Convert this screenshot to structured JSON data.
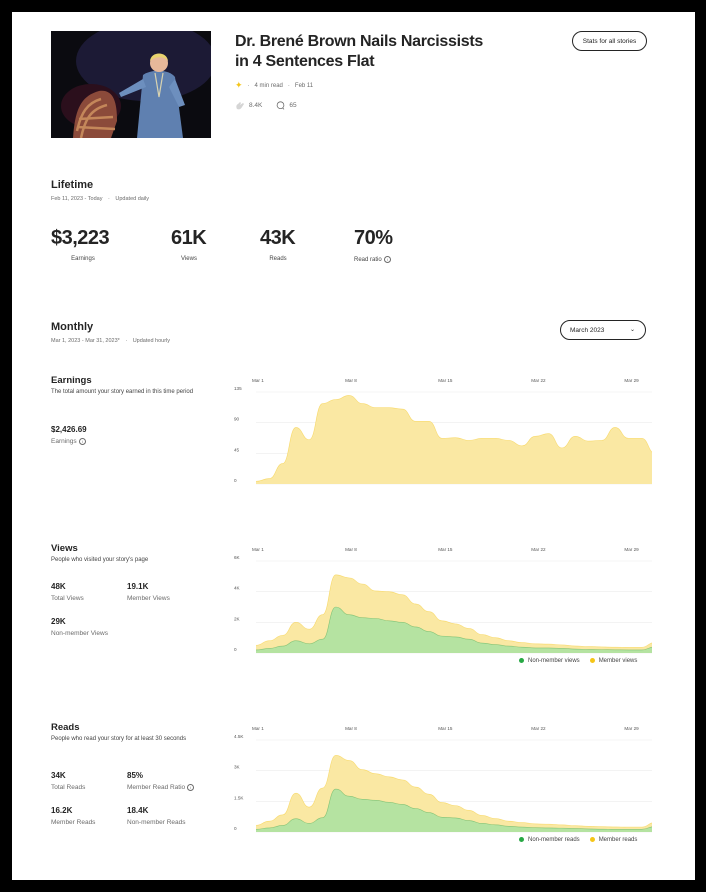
{
  "story": {
    "title": "Dr. Brené Brown Nails Narcissists in 4 Sentences Flat",
    "read_time": "4 min read",
    "date": "Feb 11",
    "claps": "8.4K",
    "responses": "65"
  },
  "buttons": {
    "stats_all": "Stats for all stories"
  },
  "lifetime": {
    "title": "Lifetime",
    "range": "Feb 11, 2023 - Today",
    "updated": "Updated daily",
    "metrics": [
      {
        "value": "$3,223",
        "label": "Earnings"
      },
      {
        "value": "61K",
        "label": "Views"
      },
      {
        "value": "43K",
        "label": "Reads"
      },
      {
        "value": "70%",
        "label": "Read ratio"
      }
    ]
  },
  "monthly": {
    "title": "Monthly",
    "range": "Mar 1, 2023 - Mar 31, 2023*",
    "updated": "Updated hourly",
    "selected_month": "March 2023"
  },
  "earnings": {
    "title": "Earnings",
    "desc": "The total amount your story earned in this time period",
    "value": "$2,426.69",
    "label": "Earnings"
  },
  "views": {
    "title": "Views",
    "desc": "People who visited your story's page",
    "stats": [
      {
        "value": "48K",
        "label": "Total Views"
      },
      {
        "value": "19.1K",
        "label": "Member Views"
      },
      {
        "value": "29K",
        "label": "Non-member Views"
      }
    ],
    "legend": [
      "Non-member views",
      "Member views"
    ]
  },
  "reads": {
    "title": "Reads",
    "desc": "People who read your story for at least 30 seconds",
    "stats": [
      {
        "value": "34K",
        "label": "Total Reads"
      },
      {
        "value": "85%",
        "label": "Member Read Ratio"
      },
      {
        "value": "16.2K",
        "label": "Member Reads"
      },
      {
        "value": "18.4K",
        "label": "Non-member Reads"
      }
    ],
    "legend": [
      "Non-member reads",
      "Member reads"
    ]
  },
  "colors": {
    "member": "#fae8a3",
    "member_line": "#f5c518",
    "nonmember": "#b5e3a1",
    "nonmember_line": "#3aa14a",
    "dot_nonmember": "#27a844",
    "dot_member": "#f5c518"
  },
  "chart_data": [
    {
      "type": "area",
      "x_ticks": [
        "Mar 1",
        "Mar 8",
        "Mar 15",
        "Mar 22",
        "Mar 29"
      ],
      "y_ticks": [
        "0",
        "45",
        "90",
        "135"
      ],
      "ylim": [
        0,
        135
      ],
      "x": [
        1,
        2,
        3,
        4,
        5,
        6,
        7,
        8,
        9,
        10,
        11,
        12,
        13,
        14,
        15,
        16,
        17,
        18,
        19,
        20,
        21,
        22,
        23,
        24,
        25,
        26,
        27,
        28,
        29,
        30,
        31
      ],
      "series": [
        {
          "values": [
            4,
            8,
            30,
            83,
            65,
            118,
            124,
            130,
            118,
            112,
            112,
            110,
            92,
            92,
            67,
            68,
            64,
            67,
            67,
            64,
            56,
            70,
            74,
            53,
            70,
            63,
            64,
            83,
            67,
            67,
            45
          ]
        }
      ]
    },
    {
      "type": "area",
      "x_ticks": [
        "Mar 1",
        "Mar 8",
        "Mar 15",
        "Mar 22",
        "Mar 29"
      ],
      "y_ticks": [
        "0",
        "2K",
        "4K",
        "6K"
      ],
      "ylim": [
        0,
        6000
      ],
      "x": [
        1,
        2,
        3,
        4,
        5,
        6,
        7,
        8,
        9,
        10,
        11,
        12,
        13,
        14,
        15,
        16,
        17,
        18,
        19,
        20,
        21,
        22,
        23,
        24,
        25,
        26,
        27,
        28,
        29,
        30,
        31
      ],
      "series": [
        {
          "name": "Non-member views",
          "values": [
            200,
            300,
            450,
            800,
            600,
            900,
            3000,
            2500,
            2300,
            2250,
            2100,
            2000,
            1700,
            1400,
            1100,
            1050,
            900,
            650,
            550,
            450,
            380,
            330,
            330,
            300,
            260,
            230,
            220,
            210,
            200,
            200,
            400
          ]
        },
        {
          "name": "Member views",
          "values": [
            300,
            500,
            700,
            1200,
            950,
            1600,
            2100,
            2400,
            2200,
            1800,
            1900,
            1800,
            1500,
            1300,
            1000,
            850,
            700,
            550,
            450,
            350,
            300,
            270,
            250,
            230,
            200,
            190,
            180,
            170,
            170,
            170,
            300
          ]
        }
      ]
    },
    {
      "type": "area",
      "x_ticks": [
        "Mar 1",
        "Mar 8",
        "Mar 15",
        "Mar 22",
        "Mar 29"
      ],
      "y_ticks": [
        "0",
        "1.5K",
        "3K",
        "4.5K"
      ],
      "ylim": [
        0,
        4500
      ],
      "x": [
        1,
        2,
        3,
        4,
        5,
        6,
        7,
        8,
        9,
        10,
        11,
        12,
        13,
        14,
        15,
        16,
        17,
        18,
        19,
        20,
        21,
        22,
        23,
        24,
        25,
        26,
        27,
        28,
        29,
        30,
        31
      ],
      "series": [
        {
          "name": "Non-member reads",
          "values": [
            130,
            200,
            320,
            650,
            420,
            700,
            2100,
            1750,
            1600,
            1550,
            1450,
            1350,
            1150,
            950,
            720,
            690,
            560,
            420,
            350,
            280,
            240,
            210,
            200,
            190,
            170,
            150,
            140,
            130,
            130,
            130,
            270
          ]
        },
        {
          "name": "Member reads",
          "values": [
            200,
            330,
            520,
            1250,
            800,
            1450,
            1650,
            1750,
            1450,
            1300,
            1250,
            1200,
            1050,
            900,
            720,
            600,
            500,
            390,
            310,
            250,
            220,
            190,
            180,
            160,
            140,
            130,
            120,
            120,
            110,
            110,
            200
          ]
        }
      ]
    }
  ]
}
